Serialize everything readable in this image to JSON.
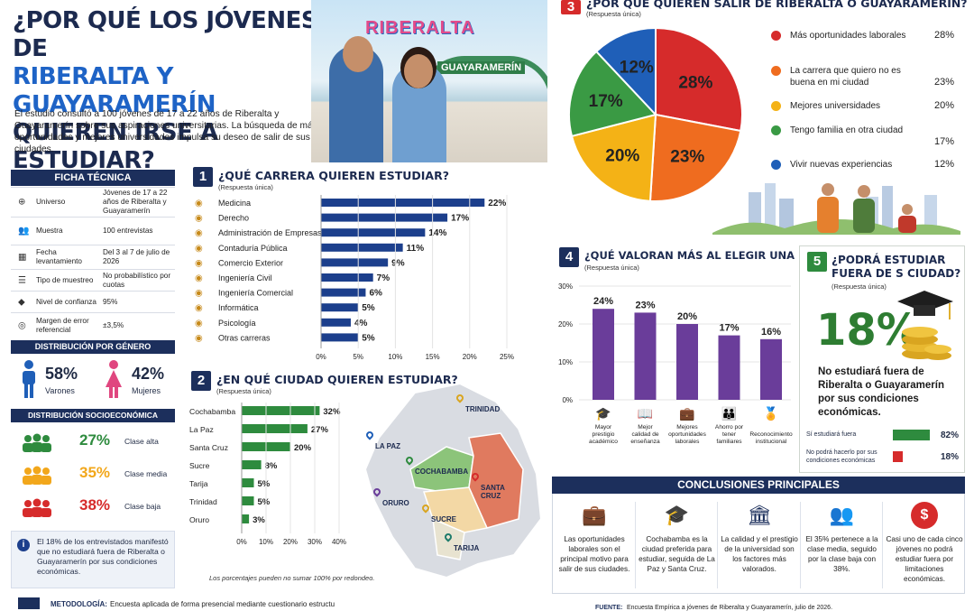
{
  "header": {
    "title_line1": "¿POR QUÉ LOS JÓVENES DE",
    "title_line2": "RIBERALTA Y GUAYARAMERÍN",
    "title_line3": "QUIEREN IRSE A ESTUDIAR?",
    "intro": "El estudio consultó a 100 jóvenes de 17 a 22 años de Riberalta y Guayaramerín sobre sus aspiraciones universitarias. La búsqueda de más oportunidades y mejores universidades impulsa su deseo de salir de sus ciudades.",
    "sign_riberalta": "RIBERALTA",
    "sign_guayaramerin": "GUAYARAMERÍN"
  },
  "ficha": {
    "title": "FICHA TÉCNICA",
    "rows": [
      {
        "label": "Universo",
        "value": "Jóvenes de 17 a 22 años de Riberalta y Guayaramerín",
        "icon": "globe-icon"
      },
      {
        "label": "Muestra",
        "value": "100 entrevistas",
        "icon": "people-icon"
      },
      {
        "label": "Fecha levantamiento",
        "value": "Del 3 al 7 de julio de 2026",
        "icon": "calendar-icon"
      },
      {
        "label": "Tipo de muestreo",
        "value": "No probabilístico por cuotas",
        "icon": "list-icon"
      },
      {
        "label": "Nivel de confianza",
        "value": "95%",
        "icon": "shield-icon"
      },
      {
        "label": "Margen de error referencial",
        "value": "±3,5%",
        "icon": "target-icon"
      }
    ]
  },
  "genero": {
    "title": "DISTRIBUCIÓN POR GÉNERO",
    "male_pct": "58%",
    "male_label": "Varones",
    "female_pct": "42%",
    "female_label": "Mujeres"
  },
  "socio": {
    "title": "DISTRIBUCIÓN SOCIOECONÓMICA",
    "items": [
      {
        "pct": "27%",
        "label": "Clase alta",
        "color": "#2e8b3e"
      },
      {
        "pct": "35%",
        "label": "Clase media",
        "color": "#f2a71b"
      },
      {
        "pct": "38%",
        "label": "Clase baja",
        "color": "#d62b2b"
      }
    ]
  },
  "note": "El 18% de los entrevistados manifestó que no estudiará fuera de Riberalta o Guayaramerín por sus condiciones económicas.",
  "sec1": {
    "num": "1",
    "title": "¿QUÉ CARRERA QUIEREN ESTUDIAR?",
    "sub": "(Respuesta única)"
  },
  "sec2": {
    "num": "2",
    "title": "¿EN QUÉ CIUDAD QUIEREN ESTUDIAR?",
    "sub": "(Respuesta única)",
    "footnote": "Los porcentajes pueden no sumar 100% por redondeo."
  },
  "sec3": {
    "num": "3",
    "title": "¿POR QUÉ QUIEREN SALIR DE RIBERALTA O GUAYARAMERÍN?",
    "sub": "(Respuesta única)"
  },
  "sec4": {
    "num": "4",
    "title": "¿QUÉ VALORAN MÁS AL ELEGIR UNA UNIVERSIDAD?",
    "sub": "(Respuesta única)"
  },
  "sec5": {
    "num": "5",
    "title_l1": "¿PODRÁ ESTUDIAR",
    "title_l2": "FUERA DE S CIUDAD?",
    "sub": "(Respuesta única)",
    "big": "18%",
    "desc": "No estudiará fuera de Riberalta o Guayaramerín por sus condiciones económicas.",
    "yes_label": "Sí estudiará fuera",
    "yes_pct": "82%",
    "no_label": "No podrá hacerlo por sus condiciones económicas",
    "no_pct": "18%"
  },
  "map": {
    "labels": [
      {
        "t": "TRINIDAD"
      },
      {
        "t": "LA PAZ"
      },
      {
        "t": "COCHABAMBA"
      },
      {
        "t": "SANTA CRUZ"
      },
      {
        "t": "ORURO"
      },
      {
        "t": "SUCRE"
      },
      {
        "t": "TARIJA"
      }
    ]
  },
  "conclusiones": {
    "title": "CONCLUSIONES PRINCIPALES",
    "items": [
      "Las oportunidades laborales son el principal motivo para salir de sus ciudades.",
      "Cochabamba es la ciudad preferida para estudiar, seguida de La Paz y Santa Cruz.",
      "La calidad y el prestigio de la universidad son los factores más valorados.",
      "El 35% pertenece a la clase media, seguido por la clase baja con 38%.",
      "Casi uno de cada cinco jóvenes no podrá estudiar fuera por limitaciones económicas."
    ]
  },
  "footer": {
    "metodologia_label": "METODOLOGÍA:",
    "metodologia": "Encuesta aplicada de forma presencial mediante cuestionario estructu",
    "fuente_label": "FUENTE:",
    "fuente": "Encuesta Empírica a jóvenes de Riberalta y Guayaramerín, julio de 2026."
  },
  "chart_data": [
    {
      "type": "bar",
      "orientation": "horizontal",
      "categories": [
        "Medicina",
        "Derecho",
        "Administración de Empresas",
        "Contaduría Pública",
        "Comercio Exterior",
        "Ingeniería Civil",
        "Ingeniería Comercial",
        "Informática",
        "Psicología",
        "Otras carreras"
      ],
      "values": [
        22,
        17,
        14,
        11,
        9,
        7,
        6,
        5,
        4,
        5
      ],
      "xlim": [
        0,
        25
      ],
      "xticks": [
        "0%",
        "5%",
        "10%",
        "15%",
        "20%",
        "25%"
      ],
      "color": "#1c3f8c"
    },
    {
      "type": "bar",
      "orientation": "horizontal",
      "categories": [
        "Cochabamba",
        "La Paz",
        "Santa Cruz",
        "Sucre",
        "Tarija",
        "Trinidad",
        "Oruro"
      ],
      "values": [
        32,
        27,
        20,
        8,
        5,
        5,
        3
      ],
      "xlim": [
        0,
        40
      ],
      "xticks": [
        "0%",
        "10%",
        "20%",
        "30%",
        "40%"
      ],
      "color": "#2e8b3e"
    },
    {
      "type": "pie",
      "categories": [
        "Más oportunidades laborales",
        "La carrera que quiero no es buena en mi ciudad",
        "Mejores universidades",
        "Tengo familia en otra ciudad",
        "Vivir nuevas experiencias"
      ],
      "values": [
        28,
        23,
        20,
        17,
        12
      ],
      "colors": [
        "#d62b2b",
        "#ef6c1f",
        "#f4b216",
        "#3a9a44",
        "#1f5fb8"
      ]
    },
    {
      "type": "bar",
      "orientation": "vertical",
      "categories": [
        "Mayor prestigio académico",
        "Mejor calidad de enseñanza",
        "Mejores oportunidades laborales",
        "Ahorro por tener familiares",
        "Reconocimiento institucional"
      ],
      "values": [
        24,
        23,
        20,
        17,
        16
      ],
      "ylim": [
        0,
        30
      ],
      "yticks": [
        "0%",
        "10%",
        "20%",
        "30%"
      ],
      "color": "#6a3d9a"
    }
  ]
}
